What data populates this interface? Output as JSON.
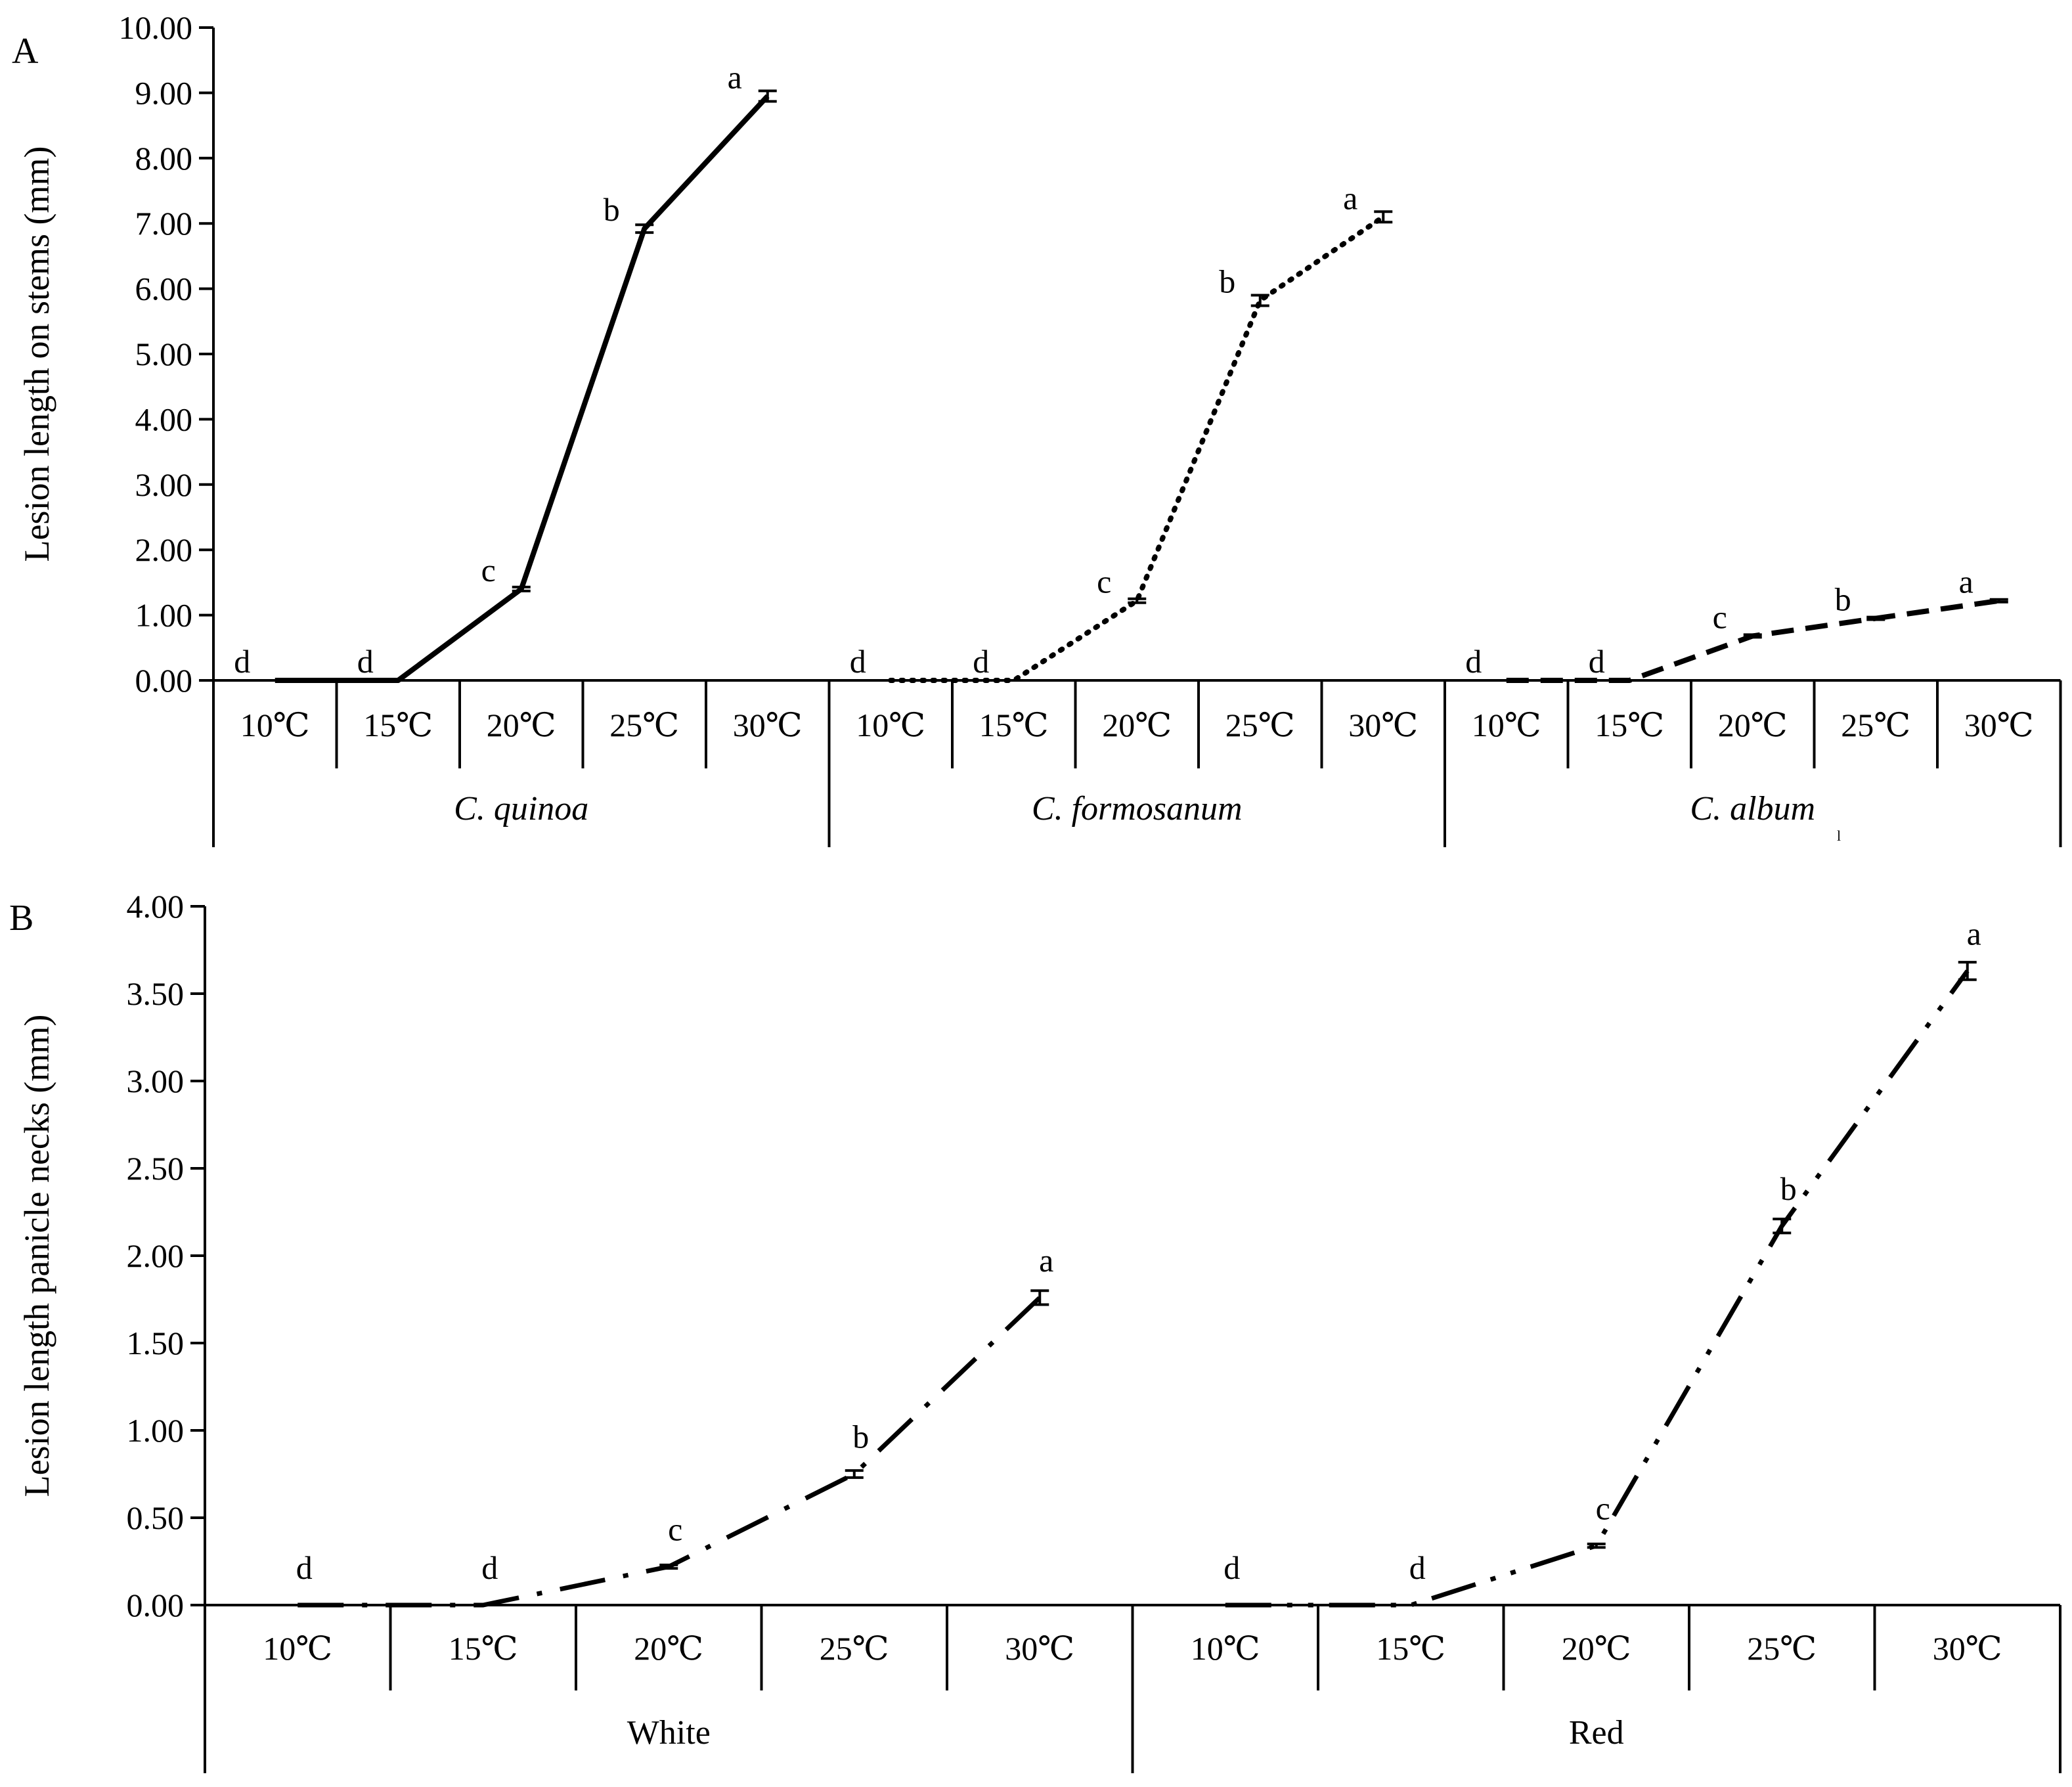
{
  "chart_data": [
    {
      "type": "line",
      "panel_label": "A",
      "ylabel": "Lesion length on stems (mm)",
      "ylim": [
        0,
        10
      ],
      "y_ticks": [
        "0.00",
        "1.00",
        "2.00",
        "3.00",
        "4.00",
        "5.00",
        "6.00",
        "7.00",
        "8.00",
        "9.00",
        "10.00"
      ],
      "categories": [
        "10℃",
        "15℃",
        "20℃",
        "25℃",
        "30℃"
      ],
      "groups": [
        "C. quinoa",
        "C. formosanum",
        "C. album"
      ],
      "grid": false,
      "legend": "none",
      "stray_mark": "l",
      "series": [
        {
          "values": [
            0.0,
            0.0,
            1.4,
            6.92,
            8.95
          ],
          "error": [
            0,
            0,
            0.03,
            0.06,
            0.08
          ],
          "letters": [
            "d",
            "d",
            "c",
            "b",
            "a"
          ],
          "line_style": "solid"
        },
        {
          "values": [
            0.0,
            0.0,
            1.22,
            5.82,
            7.1
          ],
          "error": [
            0,
            0,
            0.03,
            0.08,
            0.08
          ],
          "letters": [
            "d",
            "d",
            "c",
            "b",
            "a"
          ],
          "line_style": "dotted"
        },
        {
          "values": [
            0.0,
            0.0,
            0.68,
            0.95,
            1.22
          ],
          "error": [
            0,
            0,
            0.02,
            0.02,
            0.02
          ],
          "letters": [
            "d",
            "d",
            "c",
            "b",
            "a"
          ],
          "line_style": "dashed"
        }
      ]
    },
    {
      "type": "line",
      "panel_label": "B",
      "ylabel": "Lesion length panicle necks  (mm)",
      "ylim": [
        0,
        4
      ],
      "y_ticks": [
        "0.00",
        "0.50",
        "1.00",
        "1.50",
        "2.00",
        "2.50",
        "3.00",
        "3.50",
        "4.00"
      ],
      "categories": [
        "10℃",
        "15℃",
        "20℃",
        "25℃",
        "30℃"
      ],
      "groups": [
        "White",
        "Red"
      ],
      "grid": false,
      "legend": "none",
      "series": [
        {
          "values": [
            0.0,
            0.0,
            0.22,
            0.75,
            1.76
          ],
          "error": [
            0,
            0,
            0.01,
            0.02,
            0.04
          ],
          "letters": [
            "d",
            "d",
            "c",
            "b",
            "a"
          ],
          "line_style": "dash-dot"
        },
        {
          "values": [
            0.0,
            0.0,
            0.34,
            2.17,
            3.63
          ],
          "error": [
            0,
            0,
            0.01,
            0.04,
            0.05
          ],
          "letters": [
            "d",
            "d",
            "c",
            "b",
            "a"
          ],
          "line_style": "dash-dot-dot"
        }
      ]
    }
  ],
  "styles": {
    "line_color": "#000000",
    "background": "#ffffff"
  }
}
